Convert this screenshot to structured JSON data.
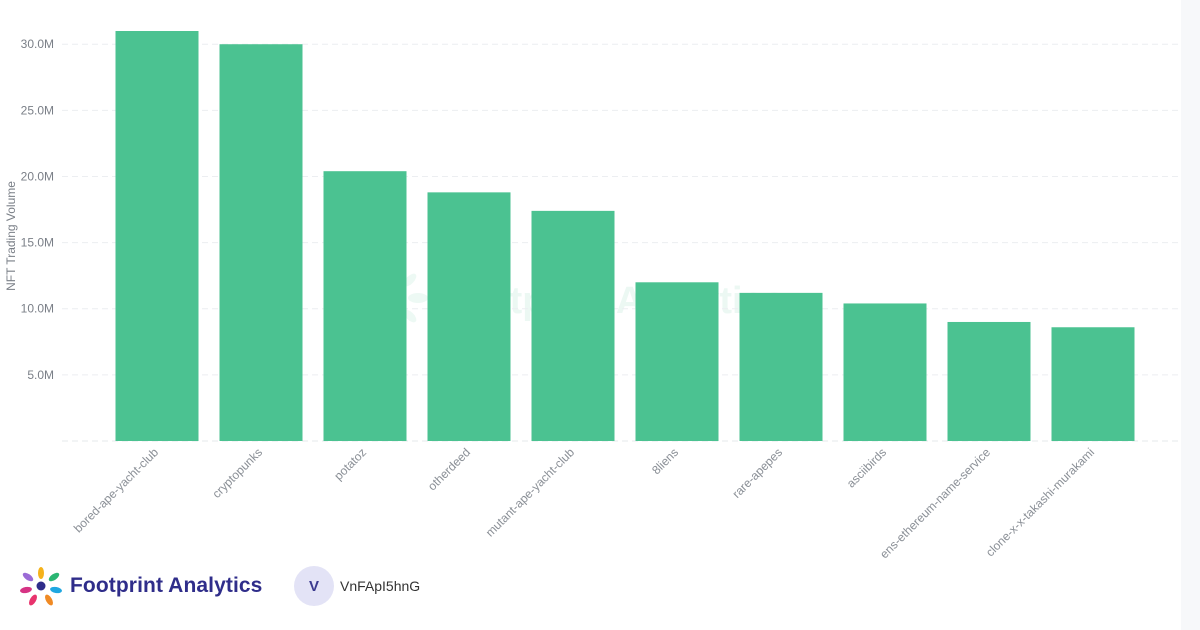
{
  "chart_data": {
    "type": "bar",
    "ylabel": "NFT Trading Volume",
    "xlabel": "",
    "ylim": [
      0,
      31000000
    ],
    "grid": true,
    "bar_color": "#4bc291",
    "yticks": [
      {
        "value": 5000000,
        "label": "5.0M"
      },
      {
        "value": 10000000,
        "label": "10.0M"
      },
      {
        "value": 15000000,
        "label": "15.0M"
      },
      {
        "value": 20000000,
        "label": "20.0M"
      },
      {
        "value": 25000000,
        "label": "25.0M"
      },
      {
        "value": 30000000,
        "label": "30.0M"
      }
    ],
    "categories": [
      "bored-ape-yacht-club",
      "cryptopunks",
      "potatoz",
      "otherdeed",
      "mutant-ape-yacht-club",
      "8liens",
      "rare-apepes",
      "asciibirds",
      "ens-ethereum-name-service",
      "clone-x-x-takashi-murakami"
    ],
    "values": [
      31000000,
      30000000,
      20400000,
      18800000,
      17400000,
      12000000,
      11200000,
      10400000,
      9000000,
      8600000
    ]
  },
  "watermark": {
    "text": "Footprint Analytics"
  },
  "footer": {
    "brand": "Footprint Analytics",
    "avatar_letter": "V",
    "username": "VnFApI5hnG"
  },
  "colors": {
    "bar": "#4bc291",
    "brand_text": "#2f2d8a",
    "avatar_bg": "#e3e3f6"
  }
}
